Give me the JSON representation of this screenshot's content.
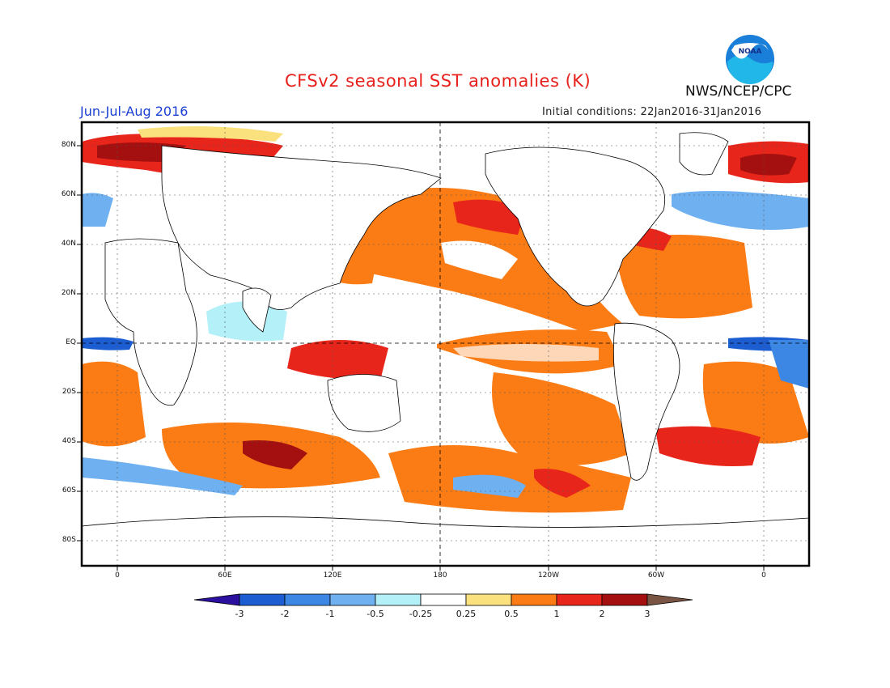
{
  "title": "CFSv2 seasonal SST anomalies (K)",
  "season": "Jun-Jul-Aug 2016",
  "initial_conditions": "Initial conditions: 22Jan2016-31Jan2016",
  "org": "NWS/NCEP/CPC",
  "logo_text": "NOAA",
  "lat_labels": [
    "80N",
    "60N",
    "40N",
    "20N",
    "EQ",
    "20S",
    "40S",
    "60S",
    "80S"
  ],
  "lon_labels": [
    "0",
    "60E",
    "120E",
    "180",
    "120W",
    "60W",
    "0"
  ],
  "colorbar": {
    "labels": [
      "-3",
      "-2",
      "-1",
      "-0.5",
      "-0.25",
      "0.25",
      "0.5",
      "1",
      "2",
      "3"
    ],
    "colors": [
      "#2b0f9e",
      "#1c5ed2",
      "#3c87e4",
      "#6fb0f0",
      "#b4f0f8",
      "#ffffff",
      "#fbe17e",
      "#fb7b14",
      "#e8251a",
      "#a40f0f",
      "#7b5544"
    ]
  },
  "colors": {
    "title": "#e8201c",
    "season": "#1a3fd4"
  }
}
